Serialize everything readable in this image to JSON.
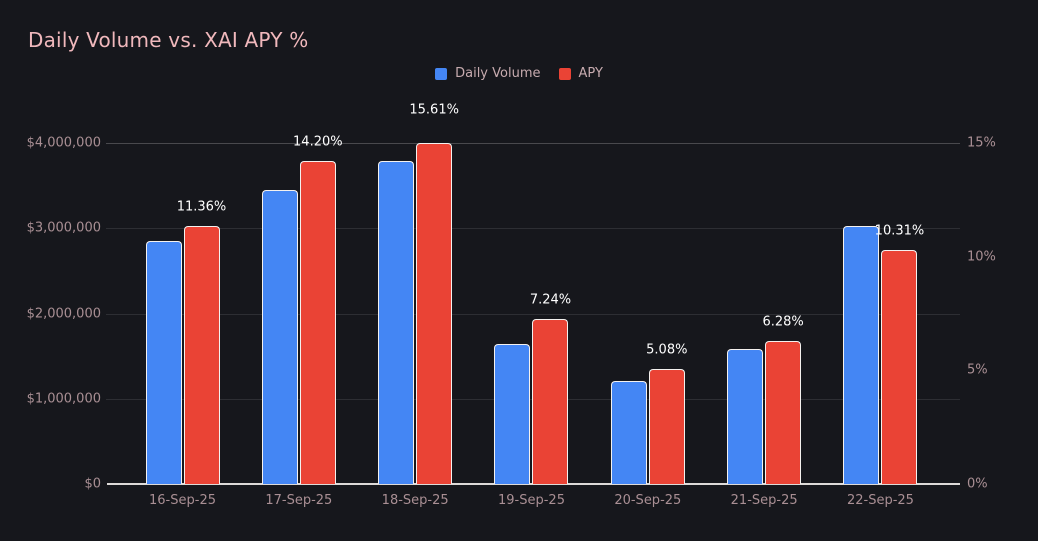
{
  "title": "Daily Volume vs. XAI APY %",
  "colors": {
    "background": "#16171C",
    "title_text": "#F0B8BC",
    "axis_label": "#A98F94",
    "legend_label": "#C7ABAF",
    "data_label": "#FFFFFF",
    "daily_volume_blue": "#4486F4",
    "apy_red": "#EA4335",
    "bar_border": "#F4F1EF",
    "baseline": "#DDDAD8"
  },
  "legend": {
    "items": [
      {
        "label": "Daily Volume",
        "color": "#4486F4"
      },
      {
        "label": "APY",
        "color": "#EA4335"
      }
    ]
  },
  "chart_data": {
    "type": "bar",
    "title": "Daily Volume vs. XAI APY %",
    "categories": [
      "16-Sep-25",
      "17-Sep-25",
      "18-Sep-25",
      "19-Sep-25",
      "20-Sep-25",
      "21-Sep-25",
      "22-Sep-25"
    ],
    "series": [
      {
        "name": "Daily Volume",
        "axis": "left",
        "color": "#4486F4",
        "values": [
          2850000,
          3450000,
          3790000,
          1640000,
          1210000,
          1580000,
          3030000
        ]
      },
      {
        "name": "APY",
        "axis": "right",
        "color": "#EA4335",
        "values": [
          11.36,
          14.2,
          15.61,
          7.24,
          5.08,
          6.28,
          10.31
        ],
        "data_labels": [
          "11.36%",
          "14.20%",
          "15.61%",
          "7.24%",
          "5.08%",
          "6.28%",
          "10.31%"
        ]
      }
    ],
    "left_axis": {
      "tick_labels": [
        "$0",
        "$1,000,000",
        "$2,000,000",
        "$3,000,000",
        "$4,000,000"
      ],
      "range": [
        0,
        4000000
      ]
    },
    "right_axis": {
      "tick_labels": [
        "0%",
        "5%",
        "10%",
        "15%"
      ],
      "range": [
        0,
        15
      ]
    },
    "legend_position": "top-center",
    "grid": "horizontal"
  }
}
